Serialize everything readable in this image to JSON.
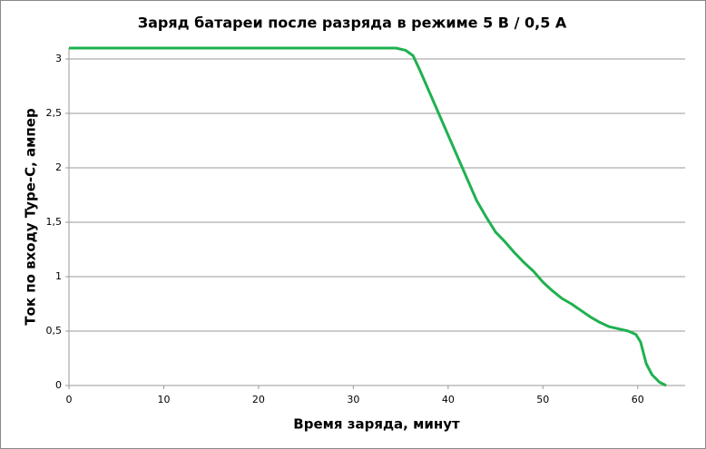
{
  "chart_data": {
    "type": "line",
    "title": "Заряд батареи после разряда в режиме 5 В / 0,5 А",
    "x_label": "Время заряда, минут",
    "y_label": "Ток по входу Type-C, ампер",
    "x": [
      0,
      10,
      20,
      30,
      34.5,
      35.5,
      36.3,
      37,
      38,
      39,
      40,
      41,
      42,
      43,
      44,
      45,
      46,
      47,
      48,
      49,
      50,
      51,
      52,
      53,
      54,
      55,
      56,
      57,
      58,
      59,
      59.8,
      60.3,
      60.6,
      60.9,
      61.5,
      62.3,
      63
    ],
    "series": [
      {
        "color": "#1fb150",
        "values": [
          3.1,
          3.1,
          3.1,
          3.1,
          3.1,
          3.08,
          3.03,
          2.9,
          2.7,
          2.5,
          2.3,
          2.1,
          1.9,
          1.7,
          1.55,
          1.41,
          1.32,
          1.22,
          1.13,
          1.05,
          0.95,
          0.87,
          0.8,
          0.75,
          0.69,
          0.63,
          0.58,
          0.54,
          0.52,
          0.5,
          0.47,
          0.4,
          0.3,
          0.2,
          0.1,
          0.03,
          0
        ]
      }
    ],
    "xlim": [
      0,
      65
    ],
    "xticks": [
      0,
      10,
      20,
      30,
      40,
      50,
      60
    ],
    "ylim": [
      0,
      3.1
    ],
    "yticks": [
      0,
      {
        "value": 0.5,
        "label": "0,5"
      },
      1,
      {
        "value": 1.5,
        "label": "1,5"
      },
      2,
      {
        "value": 2.5,
        "label": "2,5"
      },
      3
    ],
    "grid": true
  }
}
